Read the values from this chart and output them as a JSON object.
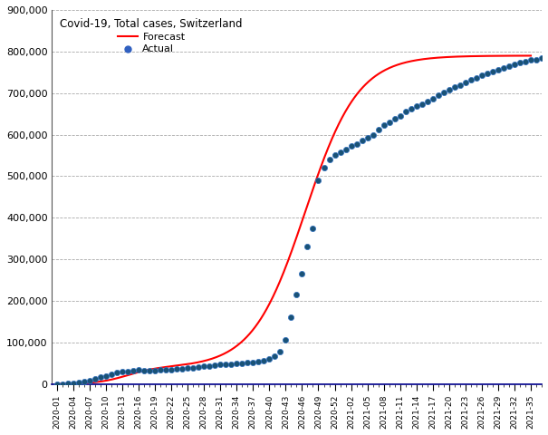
{
  "title": "Covid-19, Total cases, Switzerland",
  "forecast_color": "#FF0000",
  "actual_color": "#1a5276",
  "background_color": "#ffffff",
  "grid_color": "#aaaaaa",
  "ylim": [
    0,
    900000
  ],
  "yticks": [
    0,
    100000,
    200000,
    300000,
    400000,
    500000,
    600000,
    700000,
    800000,
    900000
  ],
  "x_labels": [
    "2020-01",
    "2020-04",
    "2020-07",
    "2020-10",
    "2020-13",
    "2020-16",
    "2020-19",
    "2020-22",
    "2020-25",
    "2020-28",
    "2020-31",
    "2020-34",
    "2020-37",
    "2020-40",
    "2020-43",
    "2020-46",
    "2020-49",
    "2020-52",
    "2021-02",
    "2021-05",
    "2021-08",
    "2021-11",
    "2021-14",
    "2021-17",
    "2021-20",
    "2021-23",
    "2021-26",
    "2021-29",
    "2021-32",
    "2021-35"
  ],
  "legend_forecast": "Forecast",
  "legend_actual": "Actual",
  "actual_data": [
    [
      0,
      100
    ],
    [
      1,
      300
    ],
    [
      2,
      800
    ],
    [
      3,
      1500
    ],
    [
      4,
      3000
    ],
    [
      5,
      5500
    ],
    [
      6,
      9000
    ],
    [
      7,
      13000
    ],
    [
      8,
      16000
    ],
    [
      9,
      20000
    ],
    [
      10,
      24000
    ],
    [
      11,
      27000
    ],
    [
      12,
      29000
    ],
    [
      13,
      31000
    ],
    [
      14,
      33000
    ],
    [
      15,
      33500
    ],
    [
      16,
      33000
    ],
    [
      17,
      32500
    ],
    [
      18,
      33000
    ],
    [
      19,
      33500
    ],
    [
      20,
      34000
    ],
    [
      21,
      35000
    ],
    [
      22,
      36000
    ],
    [
      23,
      37000
    ],
    [
      24,
      38000
    ],
    [
      25,
      39500
    ],
    [
      26,
      41000
    ],
    [
      27,
      42500
    ],
    [
      28,
      44000
    ],
    [
      29,
      45500
    ],
    [
      30,
      46500
    ],
    [
      31,
      47500
    ],
    [
      32,
      48500
    ],
    [
      33,
      49500
    ],
    [
      34,
      50500
    ],
    [
      35,
      51500
    ],
    [
      36,
      52500
    ],
    [
      37,
      54000
    ],
    [
      38,
      56000
    ],
    [
      39,
      60000
    ],
    [
      40,
      67000
    ],
    [
      41,
      78000
    ],
    [
      42,
      107000
    ],
    [
      43,
      160000
    ],
    [
      44,
      215000
    ],
    [
      45,
      265000
    ],
    [
      46,
      330000
    ],
    [
      47,
      375000
    ],
    [
      48,
      490000
    ],
    [
      49,
      520000
    ],
    [
      50,
      540000
    ],
    [
      51,
      550000
    ],
    [
      52,
      558000
    ],
    [
      53,
      565000
    ],
    [
      54,
      572000
    ],
    [
      55,
      578000
    ],
    [
      56,
      585000
    ],
    [
      57,
      592000
    ],
    [
      58,
      600000
    ],
    [
      59,
      612000
    ],
    [
      60,
      622000
    ],
    [
      61,
      630000
    ],
    [
      62,
      638000
    ],
    [
      63,
      645000
    ],
    [
      64,
      655000
    ],
    [
      65,
      663000
    ],
    [
      66,
      668000
    ],
    [
      67,
      673000
    ],
    [
      68,
      680000
    ],
    [
      69,
      687000
    ],
    [
      70,
      694000
    ],
    [
      71,
      702000
    ],
    [
      72,
      707000
    ],
    [
      73,
      714000
    ],
    [
      74,
      720000
    ],
    [
      75,
      726000
    ],
    [
      76,
      732000
    ],
    [
      77,
      737000
    ],
    [
      78,
      742000
    ],
    [
      79,
      747000
    ],
    [
      80,
      752000
    ],
    [
      81,
      757000
    ],
    [
      82,
      761000
    ],
    [
      83,
      765000
    ],
    [
      84,
      769000
    ],
    [
      85,
      773000
    ],
    [
      86,
      776000
    ],
    [
      87,
      779000
    ],
    [
      88,
      781000
    ],
    [
      89,
      784000
    ],
    [
      90,
      786000
    ],
    [
      91,
      788000
    ],
    [
      92,
      789000
    ]
  ]
}
